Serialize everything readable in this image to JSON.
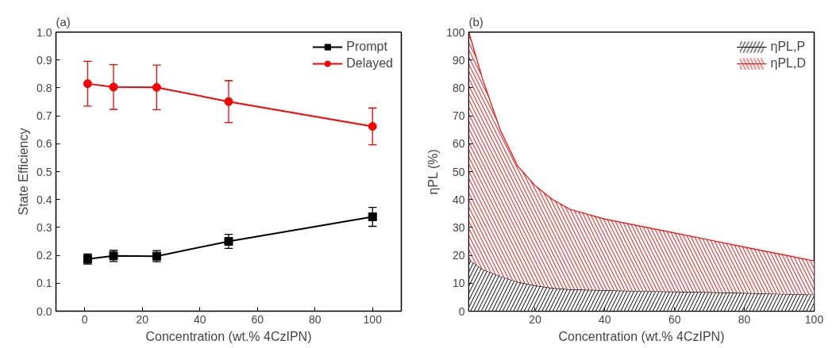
{
  "chart_data": [
    {
      "type": "line",
      "title": "(a)",
      "xlabel": "Concentration (wt.% 4CzIPN)",
      "ylabel": "State Efficiency",
      "x": [
        1,
        10,
        25,
        50,
        100
      ],
      "series": [
        {
          "name": "Prompt",
          "color": "#000000",
          "marker": "square",
          "values": [
            0.187,
            0.198,
            0.197,
            0.25,
            0.338
          ],
          "errors": [
            0.018,
            0.02,
            0.02,
            0.025,
            0.034
          ]
        },
        {
          "name": "Delayed",
          "color": "#ff0000",
          "marker": "circle",
          "values": [
            0.815,
            0.803,
            0.802,
            0.751,
            0.662
          ],
          "errors": [
            0.08,
            0.08,
            0.08,
            0.075,
            0.066
          ]
        }
      ],
      "xlim": [
        -10,
        110
      ],
      "xticks": [
        0,
        20,
        40,
        60,
        80,
        100
      ],
      "ylim": [
        0,
        1
      ],
      "yticks": [
        {
          "value": 0,
          "label": "0.0"
        },
        0.1,
        0.2,
        0.3,
        0.4,
        0.5,
        0.6,
        0.7,
        0.8,
        0.9,
        {
          "value": 1,
          "label": "1.0"
        }
      ],
      "grid": false,
      "legend": "top right",
      "line_style": "solid"
    },
    {
      "type": "area",
      "stacked": true,
      "title": "(b)",
      "xlabel": "Concentration (wt.% 4CzIPN)",
      "ylabel": "ηPL (%)",
      "x": [
        1,
        5,
        10,
        15,
        20,
        25,
        30,
        40,
        50,
        60,
        70,
        80,
        90,
        100
      ],
      "series": [
        {
          "name": "ηPL,P",
          "color": "#000000",
          "values": [
            18.5,
            15,
            12.5,
            10.5,
            9.2,
            8.3,
            7.8,
            7.5,
            7.2,
            7,
            6.8,
            6.5,
            6.2,
            5.9
          ]
        },
        {
          "name": "ηPL,D",
          "color": "#ff0000",
          "values": [
            81.5,
            68,
            52.5,
            41.5,
            35.8,
            31.7,
            28.7,
            25.5,
            23.3,
            21,
            18.7,
            16.5,
            14.3,
            12.1
          ]
        }
      ],
      "xlim": [
        1,
        100
      ],
      "xticks": [
        20,
        40,
        60,
        80,
        100
      ],
      "ylim": [
        0,
        100
      ],
      "yticks": [
        0,
        10,
        20,
        30,
        40,
        50,
        60,
        70,
        80,
        90,
        100
      ],
      "grid": false,
      "legend": "top right"
    }
  ]
}
